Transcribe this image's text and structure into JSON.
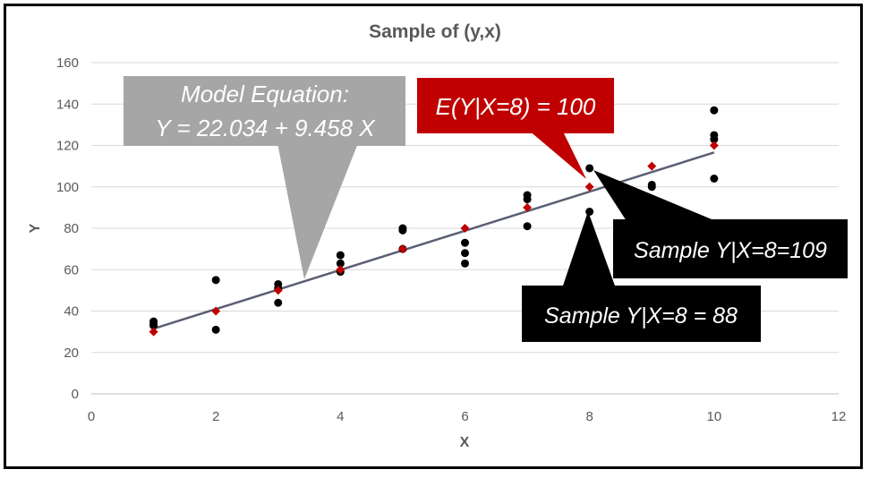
{
  "chart_data": {
    "type": "scatter",
    "title": "Sample of (y,x)",
    "xlabel": "X",
    "ylabel": "Y",
    "xlim": [
      0,
      12
    ],
    "ylim": [
      0,
      160
    ],
    "x_ticks": [
      "0",
      "2",
      "4",
      "6",
      "8",
      "10",
      "12"
    ],
    "y_ticks": [
      "0",
      "20",
      "40",
      "60",
      "80",
      "100",
      "120",
      "140",
      "160"
    ],
    "grid": "horizontal",
    "colors": {
      "sample": "#000000",
      "expected": "#c00000",
      "line": "#5a5f73"
    },
    "series": [
      {
        "role": "sample",
        "points": [
          [
            1,
            35
          ],
          [
            1,
            34
          ],
          [
            1,
            33
          ],
          [
            2,
            55
          ],
          [
            2,
            31
          ],
          [
            3,
            53
          ],
          [
            3,
            51
          ],
          [
            3,
            44
          ],
          [
            4,
            67
          ],
          [
            4,
            63
          ],
          [
            4,
            59
          ],
          [
            5,
            80
          ],
          [
            5,
            79
          ],
          [
            5,
            70
          ],
          [
            6,
            73
          ],
          [
            6,
            68
          ],
          [
            6,
            63
          ],
          [
            7,
            96
          ],
          [
            7,
            94
          ],
          [
            7,
            81
          ],
          [
            8,
            109
          ],
          [
            8,
            88
          ],
          [
            9,
            101
          ],
          [
            9,
            100
          ],
          [
            10,
            137
          ],
          [
            10,
            125
          ],
          [
            10,
            123
          ],
          [
            10,
            104
          ]
        ]
      },
      {
        "role": "expected",
        "points": [
          [
            1,
            30
          ],
          [
            2,
            40
          ],
          [
            3,
            50
          ],
          [
            4,
            60
          ],
          [
            5,
            70
          ],
          [
            6,
            80
          ],
          [
            7,
            90
          ],
          [
            8,
            100
          ],
          [
            9,
            110
          ],
          [
            10,
            120
          ]
        ]
      }
    ],
    "trend_line": {
      "intercept": 22.034,
      "slope": 9.458,
      "x_from": 1,
      "x_to": 10
    },
    "annotations": {
      "model_title": "Model Equation:",
      "model_equation": "Y = 22.034 + 9.458 X",
      "expected": "E(Y|X=8) = 100",
      "sample_high": "Sample Y|X=8=109",
      "sample_low": "Sample Y|X=8 = 88"
    }
  }
}
